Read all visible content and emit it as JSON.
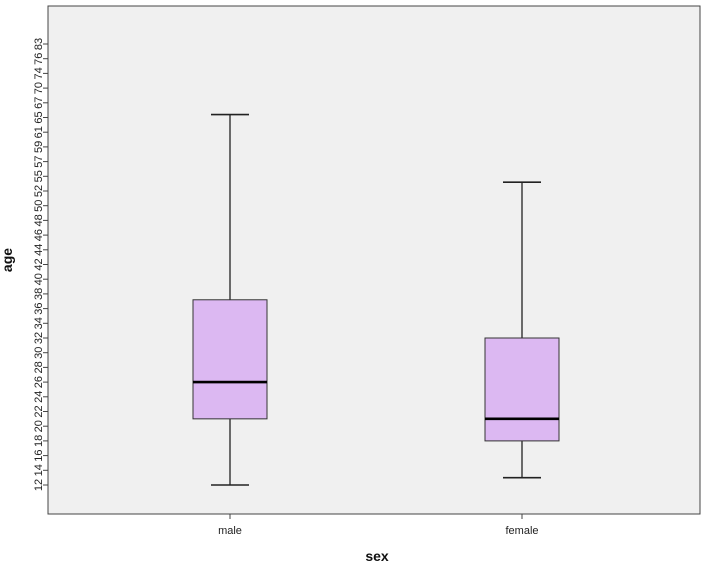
{
  "chart_data": {
    "type": "boxplot",
    "xlabel": "sex",
    "ylabel": "age",
    "categories": [
      "male",
      "female"
    ],
    "y_tick_labels": [
      "12",
      "14",
      "16",
      "18",
      "20",
      "22",
      "24",
      "26",
      "28",
      "30",
      "32",
      "34",
      "36",
      "38",
      "40",
      "42",
      "44",
      "46",
      "48",
      "50",
      "52",
      "55",
      "57",
      "59",
      "61",
      "65",
      "67",
      "70",
      "74",
      "76",
      "83"
    ],
    "boxes": [
      {
        "name": "male",
        "whisker_low_tick": 0,
        "q1_tick": 4.5,
        "median_tick": 7.0,
        "q3_tick": 12.6,
        "whisker_high_tick": 25.2
      },
      {
        "name": "female",
        "whisker_low_tick": 0.5,
        "q1_tick": 3.0,
        "median_tick": 4.5,
        "q3_tick": 10.0,
        "whisker_high_tick": 20.6
      }
    ],
    "colors": {
      "box_fill": "#dcb8f2",
      "box_stroke": "#333333",
      "plot_bg": "#f0f0f0",
      "median": "#000000"
    },
    "grid": false
  }
}
